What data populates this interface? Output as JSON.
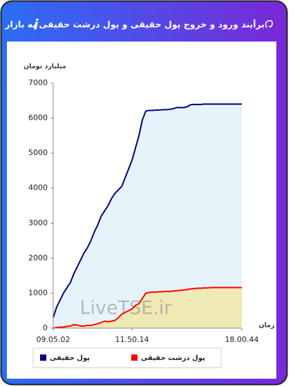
{
  "header": {
    "title": "برآیند ورود و خروج پول حقیقی و پول درشت حقیقی به بازار",
    "icon": "i"
  },
  "chart_data": {
    "type": "area",
    "ylabel": "میلیارد تومان",
    "xlabel": "زمان",
    "watermark": "LiveTSE.ir",
    "categories": [
      "09.05.02",
      null,
      null,
      null,
      null,
      null,
      null,
      null,
      null,
      null,
      null,
      null,
      null,
      null,
      null,
      null,
      null,
      null,
      null,
      null,
      null,
      null,
      null,
      "11.50.14",
      null,
      null,
      null,
      null,
      null,
      null,
      null,
      null,
      null,
      null,
      null,
      null,
      null,
      null,
      null,
      null,
      null,
      null,
      null,
      null,
      null,
      null,
      null,
      null,
      null,
      null,
      null,
      null,
      null,
      null,
      null,
      "18.00.44"
    ],
    "series": [
      {
        "name": "پول حقیقی",
        "color": "#000080",
        "fill": "#e6f3fa",
        "values": [
          300,
          600,
          800,
          1000,
          1150,
          1300,
          1550,
          1750,
          1950,
          2150,
          2300,
          2500,
          2750,
          2950,
          3200,
          3350,
          3500,
          3700,
          3850,
          3950,
          4050,
          4300,
          4550,
          4800,
          5150,
          5500,
          5950,
          6200,
          6220,
          6220,
          6230,
          6230,
          6240,
          6240,
          6250,
          6270,
          6300,
          6300,
          6300,
          6320,
          6380,
          6390,
          6390,
          6390,
          6400,
          6400,
          6400,
          6400,
          6400,
          6400,
          6400,
          6400,
          6400,
          6400,
          6400,
          6400
        ]
      },
      {
        "name": "پول درشت حقیقی",
        "color": "#ff0000",
        "fill": "#eee9b5",
        "values": [
          0,
          20,
          30,
          30,
          50,
          60,
          100,
          90,
          60,
          60,
          80,
          80,
          100,
          130,
          160,
          200,
          180,
          200,
          220,
          300,
          400,
          450,
          500,
          550,
          650,
          700,
          850,
          1000,
          1020,
          1030,
          1030,
          1040,
          1040,
          1050,
          1050,
          1060,
          1070,
          1080,
          1090,
          1100,
          1120,
          1130,
          1140,
          1140,
          1150,
          1150,
          1160,
          1160,
          1160,
          1160,
          1160,
          1160,
          1160,
          1160,
          1160,
          1160
        ]
      }
    ],
    "ylim": [
      0,
      7000
    ],
    "yticks": [
      0,
      1000,
      2000,
      3000,
      4000,
      5000,
      6000,
      7000
    ],
    "grid": false
  }
}
